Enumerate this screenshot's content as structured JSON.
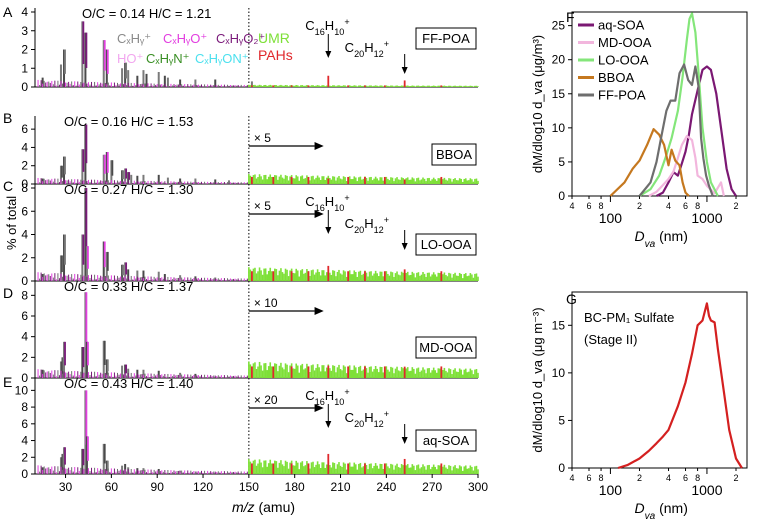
{
  "figure": {
    "xaxis_label_italic": "m/z",
    "xaxis_label_unit": "(amu)",
    "yaxis_label": "% of total",
    "legend": [
      {
        "text": "CₓHᵧ⁺",
        "color": "#8a8a8a"
      },
      {
        "text": "CₓHᵧO⁺",
        "color": "#e23ee0"
      },
      {
        "text": "CₓHᵧO₂⁺",
        "color": "#7a1a7a"
      },
      {
        "text": "HO⁺",
        "color": "#f2a7ef"
      },
      {
        "text": "CₓHᵧN⁺",
        "color": "#3a8f25"
      },
      {
        "text": "CₓHᵧON⁺",
        "color": "#4ce0ee"
      }
    ],
    "umr_label": "UMR",
    "pah_label": "PAHs",
    "umr_color": "#7ee038",
    "pah_color": "#e0282c",
    "peak_label_1": "C16H10+",
    "peak_label_2": "C20H12+"
  },
  "chart_data": [
    {
      "type": "bar",
      "panel": "A",
      "title": "FF-POA",
      "ratios": "O/C = 0.14 H/C = 1.21",
      "ylim": [
        0,
        4
      ],
      "yticks": [
        0,
        1,
        2,
        3,
        4
      ],
      "umr_multiplier": "",
      "peaks_marked": [
        "C16H10+",
        "C20H12+"
      ],
      "xlim": [
        10,
        300
      ],
      "sticks": [
        [
          15,
          0.5
        ],
        [
          27,
          1.2
        ],
        [
          29,
          2.0
        ],
        [
          41,
          3.5
        ],
        [
          43,
          2.9
        ],
        [
          55,
          2.5
        ],
        [
          57,
          2.0
        ],
        [
          67,
          1.0
        ],
        [
          69,
          1.3
        ],
        [
          71,
          0.9
        ],
        [
          77,
          0.6
        ],
        [
          81,
          0.9
        ],
        [
          83,
          0.7
        ],
        [
          91,
          0.8
        ],
        [
          95,
          0.6
        ],
        [
          97,
          0.5
        ],
        [
          105,
          0.4
        ],
        [
          115,
          0.4
        ],
        [
          128,
          0.4
        ],
        [
          152,
          0.3
        ]
      ],
      "umr_level": 0.12,
      "pah_peaks": [
        [
          202,
          0.6
        ],
        [
          252,
          0.35
        ]
      ]
    },
    {
      "type": "bar",
      "panel": "B",
      "title": "BBOA",
      "ratios": "O/C = 0.16 H/C = 1.53",
      "ylim": [
        0,
        7
      ],
      "yticks": [
        0,
        2,
        4,
        6
      ],
      "umr_multiplier": "× 5",
      "peaks_marked": [],
      "xlim": [
        10,
        300
      ],
      "sticks": [
        [
          15,
          0.6
        ],
        [
          27,
          2.0
        ],
        [
          29,
          3.0
        ],
        [
          41,
          3.8
        ],
        [
          43,
          6.5
        ],
        [
          55,
          3.2
        ],
        [
          57,
          3.5
        ],
        [
          60,
          2.6
        ],
        [
          67,
          1.5
        ],
        [
          69,
          1.7
        ],
        [
          71,
          1.3
        ],
        [
          73,
          1.0
        ],
        [
          77,
          0.9
        ],
        [
          81,
          1.0
        ],
        [
          91,
          1.0
        ],
        [
          97,
          0.7
        ],
        [
          105,
          0.6
        ],
        [
          115,
          0.6
        ],
        [
          128,
          0.5
        ],
        [
          137,
          0.4
        ]
      ],
      "umr_level": 1.1,
      "pah_peaks": [
        [
          202,
          0.6
        ],
        [
          252,
          0.5
        ]
      ]
    },
    {
      "type": "bar",
      "panel": "C",
      "title": "LO-OOA",
      "ratios": "O/C = 0.27 H/C = 1.30",
      "ylim": [
        0,
        8
      ],
      "yticks": [
        0,
        2,
        4,
        6,
        8
      ],
      "umr_multiplier": "× 5",
      "peaks_marked": [
        "C16H10+",
        "C20H12+"
      ],
      "xlim": [
        10,
        300
      ],
      "sticks": [
        [
          15,
          0.6
        ],
        [
          27,
          2.2
        ],
        [
          29,
          4.0
        ],
        [
          41,
          4.0
        ],
        [
          43,
          8.0
        ],
        [
          44,
          3.0
        ],
        [
          55,
          3.4
        ],
        [
          57,
          2.5
        ],
        [
          67,
          1.4
        ],
        [
          69,
          1.6
        ],
        [
          71,
          1.0
        ],
        [
          77,
          0.9
        ],
        [
          81,
          0.9
        ],
        [
          91,
          0.8
        ],
        [
          95,
          0.6
        ],
        [
          105,
          0.5
        ],
        [
          115,
          0.4
        ],
        [
          128,
          0.3
        ]
      ],
      "umr_level": 1.2,
      "pah_peaks": [
        [
          202,
          1.3
        ],
        [
          252,
          1.0
        ]
      ]
    },
    {
      "type": "bar",
      "panel": "D",
      "title": "MD-OOA",
      "ratios": "O/C = 0.33 H/C = 1.37",
      "ylim": [
        0,
        9
      ],
      "yticks": [
        0,
        2,
        4,
        6,
        8
      ],
      "umr_multiplier": "× 10",
      "peaks_marked": [],
      "xlim": [
        10,
        300
      ],
      "sticks": [
        [
          15,
          0.8
        ],
        [
          27,
          1.6
        ],
        [
          28,
          2.0
        ],
        [
          29,
          3.5
        ],
        [
          41,
          3.0
        ],
        [
          43,
          8.3
        ],
        [
          44,
          3.5
        ],
        [
          55,
          3.6
        ],
        [
          57,
          1.8
        ],
        [
          67,
          1.2
        ],
        [
          69,
          1.3
        ],
        [
          71,
          0.9
        ],
        [
          77,
          0.8
        ],
        [
          81,
          0.8
        ],
        [
          91,
          0.7
        ],
        [
          105,
          0.5
        ],
        [
          115,
          0.4
        ]
      ],
      "umr_level": 1.6,
      "pah_peaks": [
        [
          202,
          1.2
        ],
        [
          252,
          1.1
        ]
      ]
    },
    {
      "type": "bar",
      "panel": "E",
      "title": "aq-SOA",
      "ratios": "O/C = 0.43 H/C = 1.40",
      "ylim": [
        0,
        11
      ],
      "yticks": [
        0,
        2,
        4,
        6,
        8,
        10
      ],
      "umr_multiplier": "× 20",
      "peaks_marked": [
        "C16H10+",
        "C20H12+"
      ],
      "xlim": [
        10,
        300
      ],
      "sticks": [
        [
          15,
          0.8
        ],
        [
          27,
          2.0
        ],
        [
          28,
          2.4
        ],
        [
          29,
          3.2
        ],
        [
          41,
          3.0
        ],
        [
          43,
          10.0
        ],
        [
          44,
          4.5
        ],
        [
          55,
          3.6
        ],
        [
          57,
          1.6
        ],
        [
          67,
          1.0
        ],
        [
          69,
          1.2
        ],
        [
          71,
          0.8
        ],
        [
          77,
          0.7
        ],
        [
          81,
          0.7
        ],
        [
          91,
          0.6
        ],
        [
          105,
          0.4
        ]
      ],
      "umr_level": 1.8,
      "pah_peaks": [
        [
          202,
          2.4
        ],
        [
          252,
          1.8
        ]
      ]
    },
    {
      "type": "line",
      "panel": "F",
      "xlabel": "D_va (nm)",
      "ylabel": "dM/dlog10 d_va (μg/m³)",
      "xscale": "log",
      "xlim": [
        40,
        2600
      ],
      "ylim": [
        0,
        27
      ],
      "ytick_labels": [
        "0",
        "5",
        "10",
        "15",
        "20",
        "25"
      ],
      "xtick_minor_labels": [
        "4",
        "6",
        "8",
        "2",
        "4",
        "6",
        "8",
        "2"
      ],
      "xtick_major_labels": [
        "100",
        "1000"
      ],
      "series": [
        {
          "name": "aq-SOA",
          "color": "#7b1873",
          "points": [
            [
              300,
              0
            ],
            [
              350,
              0.5
            ],
            [
              400,
              2
            ],
            [
              450,
              3.5
            ],
            [
              500,
              3.0
            ],
            [
              550,
              4.8
            ],
            [
              600,
              6.5
            ],
            [
              650,
              9.0
            ],
            [
              700,
              12.0
            ],
            [
              800,
              15.5
            ],
            [
              900,
              18.5
            ],
            [
              1000,
              19.0
            ],
            [
              1100,
              18.5
            ],
            [
              1250,
              15.0
            ],
            [
              1400,
              10.0
            ],
            [
              1600,
              4.0
            ],
            [
              1800,
              1.0
            ],
            [
              2000,
              0
            ]
          ]
        },
        {
          "name": "MD-OOA",
          "color": "#f2b6dd",
          "points": [
            [
              250,
              0
            ],
            [
              300,
              0.6
            ],
            [
              350,
              1.6
            ],
            [
              400,
              2.5
            ],
            [
              450,
              3.6
            ],
            [
              500,
              5.6
            ],
            [
              550,
              7.5
            ],
            [
              620,
              8.8
            ],
            [
              700,
              8.2
            ],
            [
              760,
              5.6
            ],
            [
              800,
              3.0
            ],
            [
              900,
              2.5
            ],
            [
              1000,
              1.5
            ],
            [
              1200,
              0.4
            ],
            [
              1400,
              2.0
            ],
            [
              1500,
              0
            ]
          ]
        },
        {
          "name": "LO-OOA",
          "color": "#84e67a",
          "points": [
            [
              200,
              0
            ],
            [
              260,
              1.0
            ],
            [
              320,
              3.0
            ],
            [
              380,
              6.0
            ],
            [
              430,
              8.5
            ],
            [
              500,
              12.5
            ],
            [
              560,
              17.5
            ],
            [
              620,
              23.0
            ],
            [
              660,
              26.0
            ],
            [
              700,
              26.8
            ],
            [
              760,
              24.0
            ],
            [
              820,
              18.0
            ],
            [
              900,
              10.0
            ],
            [
              1000,
              5.0
            ],
            [
              1100,
              2.0
            ],
            [
              1300,
              0
            ]
          ]
        },
        {
          "name": "BBOA",
          "color": "#c5781f",
          "points": [
            [
              100,
              0
            ],
            [
              140,
              2.0
            ],
            [
              170,
              4.0
            ],
            [
              200,
              5.2
            ],
            [
              240,
              7.5
            ],
            [
              280,
              9.8
            ],
            [
              320,
              9.0
            ],
            [
              360,
              7.5
            ],
            [
              400,
              4.5
            ],
            [
              430,
              6.8
            ],
            [
              470,
              5.2
            ],
            [
              520,
              4.5
            ],
            [
              560,
              2.0
            ],
            [
              600,
              0.5
            ],
            [
              650,
              0
            ]
          ]
        },
        {
          "name": "FF-POA",
          "color": "#6e6e6e",
          "points": [
            [
              200,
              0
            ],
            [
              260,
              2.0
            ],
            [
              300,
              5.0
            ],
            [
              340,
              9.0
            ],
            [
              380,
              12.5
            ],
            [
              420,
              14.0
            ],
            [
              470,
              14.0
            ],
            [
              520,
              18.0
            ],
            [
              580,
              19.3
            ],
            [
              640,
              17.0
            ],
            [
              700,
              16.3
            ],
            [
              760,
              19.0
            ],
            [
              820,
              16.0
            ],
            [
              870,
              8.5
            ],
            [
              920,
              5.5
            ],
            [
              980,
              3.0
            ],
            [
              1050,
              1.5
            ],
            [
              1150,
              0
            ]
          ]
        }
      ]
    },
    {
      "type": "line",
      "panel": "G",
      "title": "BC-PM₁ Sulfate",
      "subtitle": "(Stage II)",
      "xlabel": "D_va (nm)",
      "ylabel": "dM/dlog10 d_va (μg m⁻³)",
      "xscale": "log",
      "xlim": [
        40,
        2600
      ],
      "ylim": [
        0,
        18.5
      ],
      "ytick_labels": [
        "0",
        "5",
        "10",
        "15"
      ],
      "xtick_minor_labels": [
        "4",
        "6",
        "8",
        "2",
        "4",
        "6",
        "8",
        "2"
      ],
      "xtick_major_labels": [
        "100",
        "1000"
      ],
      "series": [
        {
          "name": "BC-PM1 Sulfate",
          "color": "#d42020",
          "points": [
            [
              120,
              0
            ],
            [
              150,
              0.3
            ],
            [
              200,
              1.0
            ],
            [
              250,
              1.8
            ],
            [
              300,
              2.6
            ],
            [
              350,
              3.3
            ],
            [
              400,
              4.0
            ],
            [
              500,
              6.5
            ],
            [
              600,
              9.0
            ],
            [
              700,
              12.0
            ],
            [
              800,
              15.0
            ],
            [
              900,
              15.5
            ],
            [
              1000,
              17.3
            ],
            [
              1050,
              16.0
            ],
            [
              1100,
              15.5
            ],
            [
              1200,
              15.3
            ],
            [
              1300,
              12.5
            ],
            [
              1500,
              8.0
            ],
            [
              1700,
              4.0
            ],
            [
              2000,
              1.0
            ],
            [
              2300,
              0
            ]
          ]
        }
      ]
    }
  ]
}
